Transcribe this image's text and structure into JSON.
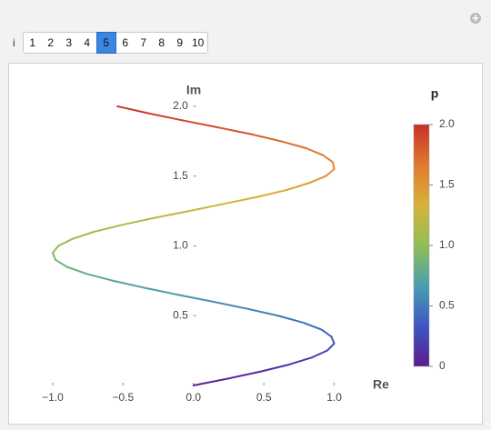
{
  "controls": {
    "label": "i",
    "options": [
      1,
      2,
      3,
      4,
      5,
      6,
      7,
      8,
      9,
      10
    ],
    "selected_index": 4
  },
  "chart_data": {
    "type": "parametric",
    "x_label": "Re",
    "y_label": "Im",
    "x": [
      0,
      0.25,
      0.48,
      0.68,
      0.84,
      0.95,
      1.0,
      0.98,
      0.91,
      0.78,
      0.6,
      0.38,
      0.14,
      -0.11,
      -0.35,
      -0.57,
      -0.76,
      -0.9,
      -0.98,
      -1.0,
      -0.96,
      -0.86,
      -0.71,
      -0.51,
      -0.28,
      -0.03,
      0.21,
      0.45,
      0.66,
      0.82,
      0.94,
      1.0,
      0.99,
      0.92,
      0.8,
      0.62,
      0.41,
      0.17,
      -0.08,
      -0.32,
      -0.54
    ],
    "y": [
      0,
      0.05,
      0.1,
      0.15,
      0.2,
      0.25,
      0.3,
      0.35,
      0.4,
      0.45,
      0.5,
      0.55,
      0.6,
      0.65,
      0.7,
      0.75,
      0.8,
      0.85,
      0.9,
      0.95,
      1.0,
      1.05,
      1.1,
      1.15,
      1.2,
      1.25,
      1.3,
      1.35,
      1.4,
      1.45,
      1.5,
      1.55,
      1.6,
      1.65,
      1.7,
      1.75,
      1.8,
      1.85,
      1.9,
      1.95,
      2.0
    ],
    "xlim": [
      -1.2,
      1.3
    ],
    "ylim": [
      0,
      2.1
    ],
    "xticks": [
      {
        "value": -1,
        "label": "−1.0"
      },
      {
        "value": -0.5,
        "label": "−0.5"
      },
      {
        "value": 0,
        "label": "0.0"
      },
      0.5,
      {
        "value": 1,
        "label": "1.0"
      }
    ],
    "yticks": [
      0.5,
      {
        "value": 1,
        "label": "1.0"
      },
      1.5,
      {
        "value": 2,
        "label": "2.0"
      }
    ],
    "colorbar_title": "p",
    "colorbar_lim": [
      0,
      2
    ],
    "colorbar_ticks": [
      0,
      0.5,
      {
        "value": 1,
        "label": "1.0"
      },
      1.5,
      {
        "value": 2,
        "label": "2.0"
      }
    ],
    "colormap": [
      "#5e1b8c",
      "#3c56c4",
      "#4a9fb0",
      "#8fbf55",
      "#d8b23a",
      "#e07a2e",
      "#c9302a"
    ]
  }
}
